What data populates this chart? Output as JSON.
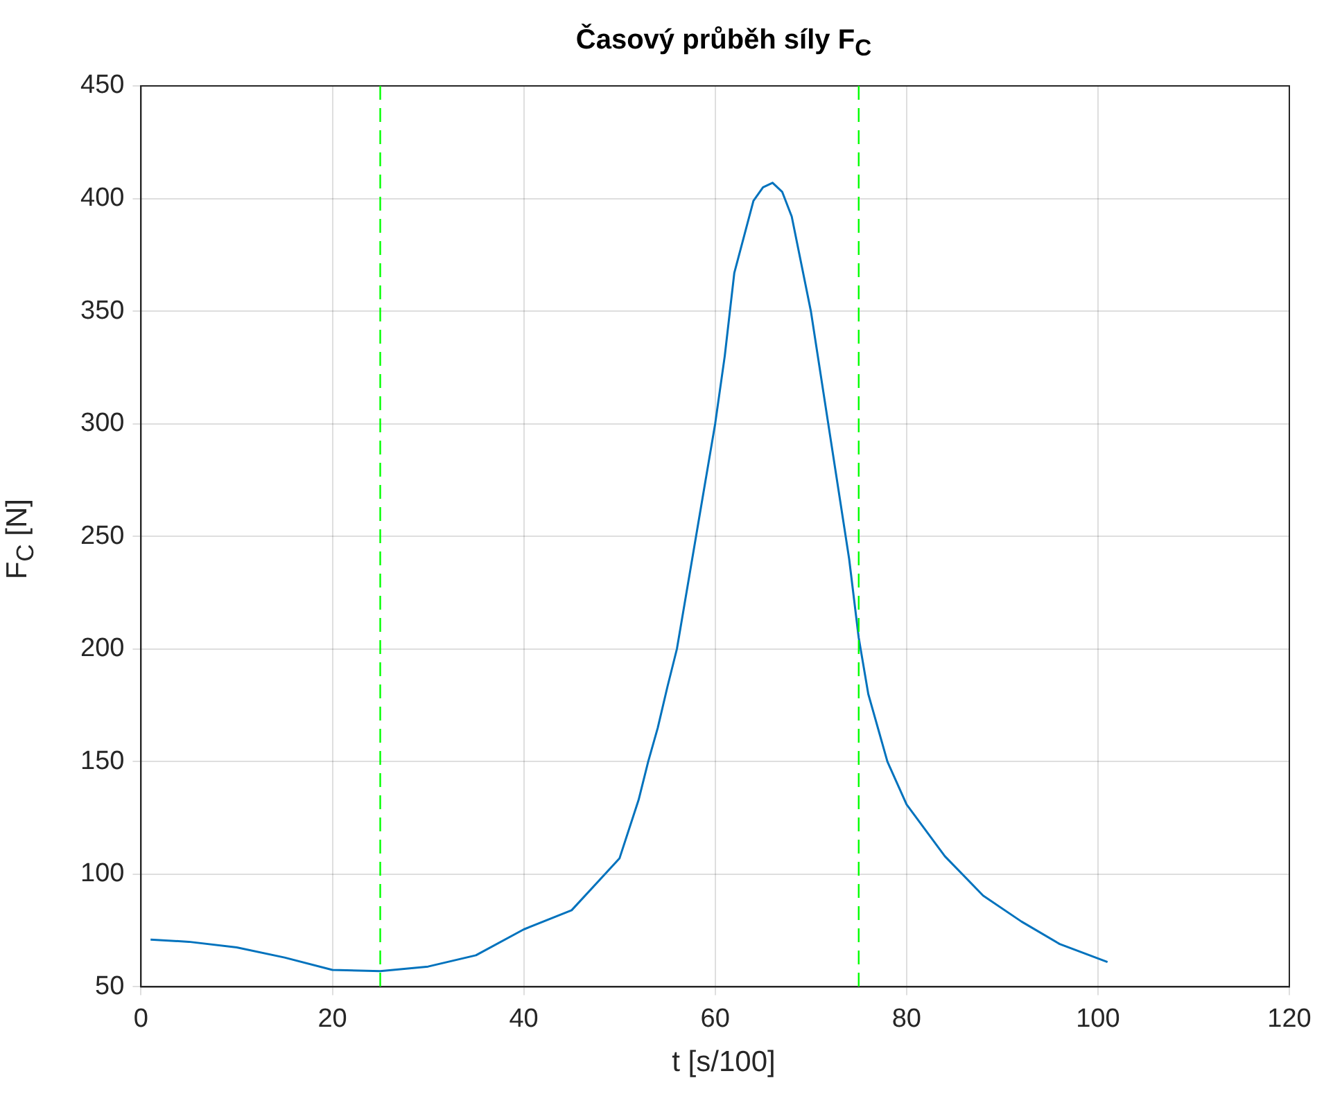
{
  "chart_data": {
    "type": "line",
    "title": "Časový průběh síly F$_{C}$",
    "xlabel": "t [s/100]",
    "ylabel": "F$_{C}$ [N]",
    "x": [
      1,
      5,
      10,
      15,
      20,
      25,
      30,
      35,
      40,
      45,
      50,
      52,
      53,
      54,
      55,
      56,
      58,
      60,
      61,
      62,
      64,
      65,
      66,
      67,
      68,
      70,
      72,
      74,
      75,
      76,
      78,
      80,
      84,
      88,
      92,
      96,
      101
    ],
    "series": [
      {
        "color": "#0072bd",
        "values": [
          71,
          70,
          67.5,
          63,
          57.5,
          57,
          59,
          64,
          75.5,
          84,
          107,
          133,
          150,
          165,
          183,
          200,
          250,
          300,
          330,
          367,
          399,
          405,
          407,
          403,
          392,
          350,
          295,
          240,
          205,
          180,
          150,
          131,
          108,
          90.5,
          79,
          69,
          61
        ]
      }
    ],
    "xlim": [
      0,
      120
    ],
    "xticks": [
      0,
      20,
      40,
      60,
      80,
      100,
      120
    ],
    "ylim": [
      50,
      450
    ],
    "yticks": [
      50,
      100,
      150,
      200,
      250,
      300,
      350,
      400,
      450
    ],
    "ref_lines": [
      {
        "axis": "x",
        "value": 25,
        "color": "#00ff00",
        "line_style": "dashed"
      },
      {
        "axis": "x",
        "value": 75,
        "color": "#00ff00",
        "line_style": "dashed"
      }
    ],
    "grid": true,
    "legend": false,
    "marker": "none",
    "line_style": "solid"
  }
}
